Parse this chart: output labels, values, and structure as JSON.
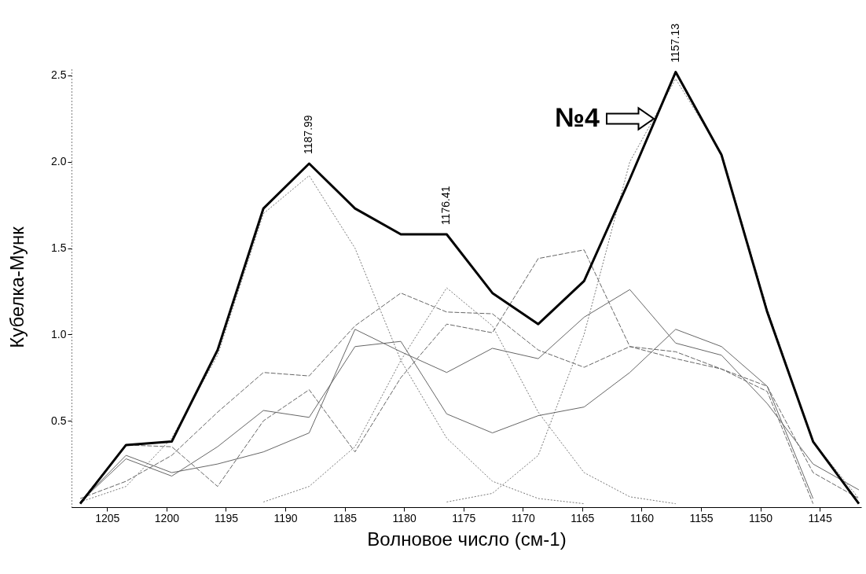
{
  "chart_data": {
    "type": "line",
    "xlabel": "Волновое число (см-1)",
    "ylabel": "Кубелка-Мунк",
    "x": [
      1207.27,
      1203.41,
      1199.56,
      1195.7,
      1191.84,
      1187.99,
      1184.13,
      1180.27,
      1176.41,
      1172.56,
      1168.7,
      1164.84,
      1160.99,
      1157.13,
      1153.27,
      1149.42,
      1145.56,
      1141.7
    ],
    "series": [
      {
        "color": "#777777",
        "line_style": "dotted",
        "values": [
          0.03,
          0.12,
          0.4,
          0.88,
          1.7,
          1.92,
          1.5,
          0.85,
          0.4,
          0.15,
          0.05,
          0.02,
          null,
          null,
          null,
          null,
          null,
          null
        ]
      },
      {
        "color": "#777777",
        "line_style": "dotted",
        "values": [
          null,
          null,
          null,
          null,
          0.03,
          0.12,
          0.35,
          0.85,
          1.27,
          1.05,
          0.55,
          0.2,
          0.06,
          0.02,
          null,
          null,
          null,
          null
        ]
      },
      {
        "color": "#777777",
        "line_style": "dotted",
        "values": [
          null,
          null,
          null,
          null,
          null,
          null,
          null,
          null,
          0.03,
          0.08,
          0.3,
          1.0,
          2.0,
          2.48,
          2.05,
          1.15,
          0.38,
          0.05
        ]
      },
      {
        "color": "#666666",
        "line_style": "dashed",
        "values": [
          0.05,
          0.15,
          0.3,
          0.55,
          0.78,
          0.76,
          1.05,
          1.24,
          1.13,
          1.12,
          0.91,
          0.81,
          0.93,
          0.9,
          0.8,
          0.7,
          0.2,
          0.05
        ]
      },
      {
        "color": "#666666",
        "line_style": "solid",
        "values": [
          0.03,
          0.3,
          0.2,
          0.25,
          0.32,
          0.43,
          1.03,
          0.9,
          0.78,
          0.92,
          0.86,
          1.1,
          1.26,
          0.95,
          0.88,
          0.6,
          0.25,
          0.1
        ]
      },
      {
        "color": "#666666",
        "line_style": "solid",
        "values": [
          0.03,
          0.28,
          0.18,
          0.35,
          0.56,
          0.52,
          0.93,
          0.96,
          0.54,
          0.43,
          0.53,
          0.58,
          0.78,
          1.03,
          0.93,
          0.7,
          0.05,
          null
        ]
      },
      {
        "color": "#666666",
        "line_style": "dashed",
        "values": [
          0.03,
          0.36,
          0.35,
          0.12,
          0.5,
          0.68,
          0.32,
          0.75,
          1.06,
          1.01,
          1.44,
          1.49,
          0.93,
          0.86,
          0.8,
          0.67,
          0.02,
          null
        ]
      },
      {
        "color": "#000000",
        "line_style": "solid",
        "values": [
          0.02,
          0.36,
          0.38,
          0.91,
          1.73,
          1.99,
          1.73,
          1.58,
          1.58,
          1.24,
          1.06,
          1.31,
          1.9,
          2.52,
          2.04,
          1.13,
          0.38,
          0.02
        ]
      }
    ],
    "xlim": [
      1208,
      1141.5
    ],
    "xticks": [
      1205,
      1200,
      1195,
      1190,
      1185,
      1180,
      1175,
      1170,
      1165,
      1160,
      1155,
      1150,
      1145
    ],
    "ylim": [
      0,
      2.55
    ],
    "yticks": [
      0.5,
      {
        "value": 1,
        "label": "1.0"
      },
      1.5,
      {
        "value": 2,
        "label": "2.0"
      },
      2.5
    ],
    "grid": false,
    "marker": "none",
    "annotations": [
      {
        "text": "1187.99",
        "x": 1187.99,
        "y": 1.99
      },
      {
        "text": "1176.41",
        "x": 1176.41,
        "y": 1.58
      },
      {
        "text": "1157.13",
        "x": 1157.13,
        "y": 2.52
      },
      "№4"
    ]
  }
}
